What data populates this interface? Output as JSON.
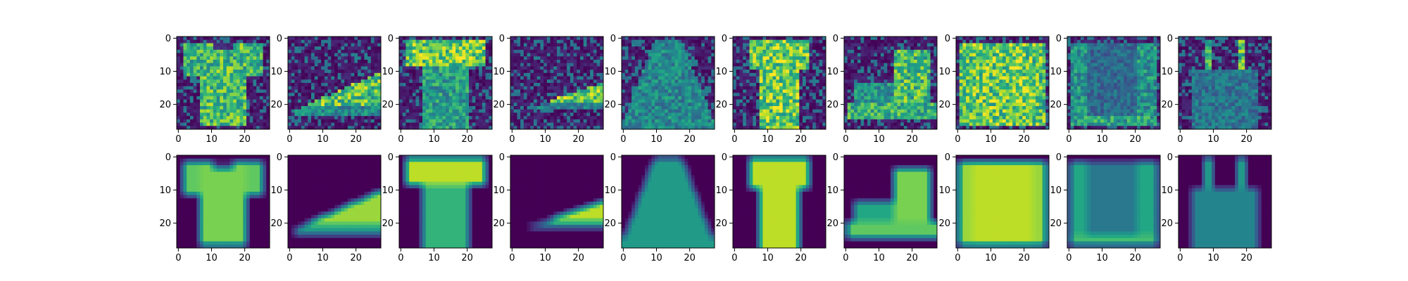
{
  "chart_data": {
    "type": "heatmap",
    "layout": {
      "rows": 2,
      "columns": 10
    },
    "image_size": [
      28,
      28
    ],
    "colormap": "viridis",
    "colors": {
      "low": "#440154",
      "mid": "#21918c",
      "high": "#fde725"
    },
    "rows": [
      {
        "panels": [
          "t-shirt",
          "sneaker",
          "t-shirt-print",
          "sneaker-low",
          "jacket",
          "dress-shirt",
          "ankle-boot",
          "pullover",
          "pullover-dark",
          "bag"
        ],
        "noise": true
      },
      {
        "panels": [
          "t-shirt",
          "sneaker",
          "t-shirt-print",
          "sneaker-low",
          "jacket",
          "dress-shirt",
          "ankle-boot",
          "pullover",
          "pullover-dark",
          "bag"
        ],
        "noise": false
      }
    ],
    "xticks": [
      "0",
      "10",
      "20"
    ],
    "yticks": [
      "0",
      "10",
      "20"
    ],
    "tick_values": [
      0,
      10,
      20
    ],
    "extent": [
      -0.5,
      27.5
    ]
  }
}
